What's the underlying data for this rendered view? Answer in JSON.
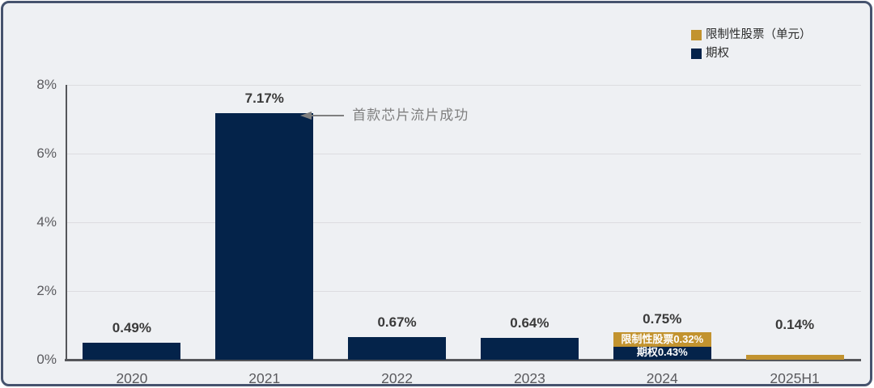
{
  "legend": {
    "items": [
      {
        "label": "限制性股票（单元）",
        "color": "#c2932f"
      },
      {
        "label": "期权",
        "color": "#04234a"
      }
    ]
  },
  "chart_data": {
    "type": "bar",
    "stacked": true,
    "title": "",
    "xlabel": "",
    "ylabel": "",
    "categories": [
      "2020",
      "2021",
      "2022",
      "2023",
      "2024",
      "2025H1"
    ],
    "series": [
      {
        "name": "期权",
        "color": "#04234a",
        "values": [
          0.49,
          7.17,
          0.67,
          0.64,
          0.43,
          0
        ],
        "inside_labels": [
          "",
          "",
          "",
          "",
          "期权0.43%",
          ""
        ]
      },
      {
        "name": "限制性股票（单元）",
        "color": "#c2932f",
        "values": [
          0,
          0,
          0,
          0,
          0.32,
          0.14
        ],
        "inside_labels": [
          "",
          "",
          "",
          "",
          "限制性股票0.32%",
          ""
        ]
      }
    ],
    "total_labels": [
      "0.49%",
      "7.17%",
      "0.67%",
      "0.64%",
      "0.75%",
      "0.14%"
    ],
    "y_ticks": [
      {
        "value": 0,
        "label": "0%"
      },
      {
        "value": 2,
        "label": "2%"
      },
      {
        "value": 4,
        "label": "4%"
      },
      {
        "value": 6,
        "label": "6%"
      },
      {
        "value": 8,
        "label": "8%"
      }
    ],
    "ylim": [
      0,
      8
    ],
    "grid": true,
    "legend_position": "top-right",
    "label_gaps": [
      8,
      8,
      8,
      8,
      8,
      27
    ],
    "annotation": {
      "text": "首款芯片流片成功",
      "target_category": "2021"
    }
  }
}
